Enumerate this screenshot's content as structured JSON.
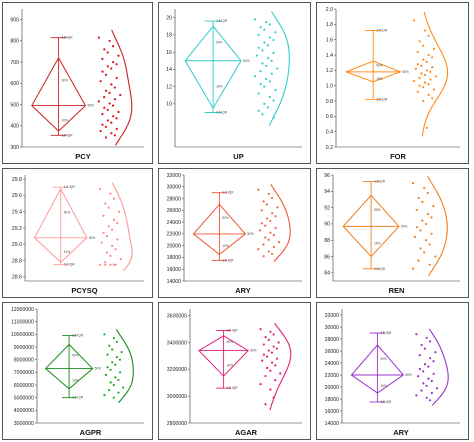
{
  "figure": {
    "rows": 3,
    "cols": 3
  },
  "chart_data": [
    {
      "type": "box-violin",
      "xlabel": "PCY",
      "ylim": [
        300,
        950
      ],
      "yticks": [
        "300",
        "400",
        "500",
        "600",
        "700",
        "800",
        "900"
      ],
      "color": "#cc2020",
      "dot_color": "#dd1111",
      "box": {
        "whisker_low": 355,
        "q1": 375,
        "median": 495,
        "q3": 720,
        "whisker_high": 815,
        "mean": 495
      },
      "annotations": {
        "top": "1.5 IQR",
        "q3": "90%",
        "mid": "50%",
        "q1": "10%",
        "bottom": "1.5 IQR"
      },
      "points": [
        815,
        800,
        775,
        760,
        745,
        730,
        715,
        700,
        690,
        680,
        670,
        655,
        640,
        625,
        610,
        595,
        580,
        565,
        555,
        545,
        535,
        525,
        515,
        505,
        495,
        485,
        475,
        465,
        455,
        445,
        435,
        425,
        415,
        405,
        395,
        385,
        375,
        365,
        355,
        345
      ]
    },
    {
      "type": "box-violin",
      "xlabel": "UP",
      "ylim": [
        5,
        21
      ],
      "yticks": [
        "10",
        "12",
        "14",
        "16",
        "18",
        "20"
      ],
      "color": "#33cccc",
      "dot_color": "#33cccc",
      "box": {
        "whisker_low": 9,
        "q1": 9.5,
        "median": 15,
        "q3": 19,
        "whisker_high": 19.6,
        "mean": 15
      },
      "annotations": {
        "top": "1.5 IQR",
        "q3": "90%",
        "mid": "50%",
        "q1": "10%",
        "bottom": "1.5 IQR"
      },
      "points": [
        19.8,
        19.5,
        19.2,
        18.9,
        18.6,
        18.3,
        18.0,
        17.7,
        17.4,
        17.1,
        16.8,
        16.5,
        16.2,
        15.9,
        15.6,
        15.3,
        15.0,
        14.7,
        14.4,
        14.1,
        13.8,
        13.5,
        13.2,
        12.9,
        12.6,
        12.3,
        12.0,
        11.6,
        11.2,
        10.8,
        10.4,
        10.0,
        9.6,
        9.2,
        8.8,
        8.4
      ]
    },
    {
      "type": "box-violin",
      "xlabel": "FOR",
      "ylim": [
        0.2,
        2.0
      ],
      "yticks": [
        "0.2",
        "0.4",
        "0.6",
        "0.8",
        "1.0",
        "1.2",
        "1.4",
        "1.6",
        "1.8",
        "2.0"
      ],
      "color": "#ff8c1a",
      "dot_color": "#ff8c1a",
      "box": {
        "whisker_low": 0.82,
        "q1": 1.05,
        "median": 1.18,
        "q3": 1.32,
        "whisker_high": 1.72,
        "mean": 1.18
      },
      "annotations": {
        "top": "1.5 IQR",
        "q3": "90%",
        "mid": "50%",
        "q1": "10%",
        "bottom": "1.5 IQR"
      },
      "points": [
        1.85,
        1.72,
        1.65,
        1.58,
        1.52,
        1.48,
        1.44,
        1.4,
        1.37,
        1.34,
        1.31,
        1.28,
        1.26,
        1.24,
        1.22,
        1.2,
        1.18,
        1.16,
        1.14,
        1.12,
        1.1,
        1.08,
        1.06,
        1.04,
        1.02,
        1.0,
        0.98,
        0.95,
        0.92,
        0.88,
        0.84,
        0.8,
        0.45
      ]
    },
    {
      "type": "box-violin",
      "xlabel": "PCYSQ",
      "ylim": [
        28.55,
        29.85
      ],
      "yticks": [
        "28.6",
        "28.8",
        "29.0",
        "29.2",
        "29.4",
        "29.6",
        "29.8"
      ],
      "color": "#ff9999",
      "dot_color": "#ff8888",
      "box": {
        "whisker_low": 28.75,
        "q1": 28.78,
        "median": 29.08,
        "q3": 29.68,
        "whisker_high": 29.7,
        "mean": 29.08
      },
      "annotations": {
        "top": "1.5 IQR",
        "q3": "90%",
        "mid": "50%",
        "q1": "10%",
        "bottom": "1.5 IQR"
      },
      "points": [
        29.68,
        29.62,
        29.56,
        29.5,
        29.45,
        29.4,
        29.35,
        29.3,
        29.26,
        29.22,
        29.18,
        29.14,
        29.1,
        29.06,
        29.02,
        28.98,
        28.94,
        28.9,
        28.86,
        28.82,
        28.78,
        28.75,
        28.75,
        28.75,
        28.75,
        28.75
      ]
    },
    {
      "type": "box-violin",
      "xlabel": "ARY",
      "ylim": [
        14000,
        32000
      ],
      "yticks": [
        "14000",
        "16000",
        "18000",
        "20000",
        "22000",
        "24000",
        "26000",
        "28000",
        "30000",
        "32000"
      ],
      "color": "#ee5533",
      "dot_color": "#ee6644",
      "box": {
        "whisker_low": 17500,
        "q1": 18500,
        "median": 22000,
        "q3": 27000,
        "whisker_high": 29000,
        "mean": 22000
      },
      "annotations": {
        "top": "1.5 IQR",
        "q3": "90%",
        "mid": "50%",
        "q1": "10%",
        "bottom": "1.5 IQR"
      },
      "points": [
        29500,
        28800,
        28100,
        27500,
        27000,
        26500,
        26000,
        25500,
        25000,
        24600,
        24200,
        23800,
        23400,
        23000,
        22600,
        22200,
        21800,
        21400,
        21000,
        20600,
        20200,
        19800,
        19400,
        19000,
        18600,
        18200
      ]
    },
    {
      "type": "box-violin",
      "xlabel": "REN",
      "ylim": [
        83,
        96
      ],
      "yticks": [
        "84",
        "86",
        "88",
        "90",
        "92",
        "94",
        "96"
      ],
      "color": "#f08020",
      "dot_color": "#f08020",
      "box": {
        "whisker_low": 84.5,
        "q1": 86,
        "median": 89.7,
        "q3": 93.5,
        "whisker_high": 95.2,
        "mean": 89.7
      },
      "annotations": {
        "top": "1.5 IQR",
        "q3": "90%",
        "mid": "50%",
        "q1": "10%",
        "bottom": "1.5 IQR"
      },
      "points": [
        95.0,
        94.4,
        93.8,
        93.2,
        92.7,
        92.2,
        91.7,
        91.2,
        90.8,
        90.4,
        90.0,
        89.6,
        89.2,
        88.8,
        88.4,
        88.0,
        87.5,
        87.0,
        86.5,
        86.0,
        85.5,
        85.0,
        84.5
      ]
    },
    {
      "type": "box-violin",
      "xlabel": "AGPR",
      "ylim": [
        3000000,
        12000000
      ],
      "yticks": [
        "3000000",
        "4000000",
        "5000000",
        "6000000",
        "7000000",
        "8000000",
        "9000000",
        "10000000",
        "11000000",
        "12000000"
      ],
      "color": "#1a8a1a",
      "dot_color": "#22aa22",
      "box": {
        "whisker_low": 5000000,
        "q1": 5700000,
        "median": 7300000,
        "q3": 9200000,
        "whisker_high": 9900000,
        "mean": 7300000
      },
      "annotations": {
        "top": "1.5 IQR",
        "q3": "90%",
        "mid": "50%",
        "q1": "10%",
        "bottom": "1.5 IQR"
      },
      "points": [
        10000000,
        9700000,
        9400000,
        9100000,
        8800000,
        8600000,
        8400000,
        8200000,
        8000000,
        7800000,
        7600000,
        7400000,
        7200000,
        7000000,
        6800000,
        6600000,
        6400000,
        6200000,
        6000000,
        5800000,
        5600000,
        5400000,
        5200000,
        5000000
      ]
    },
    {
      "type": "box-violin",
      "xlabel": "AGAR",
      "ylim": [
        2800000,
        3650000
      ],
      "yticks": [
        "2800000",
        "3000000",
        "3200000",
        "3400000",
        "3600000"
      ],
      "color": "#e0207a",
      "dot_color": "#e0207a",
      "box": {
        "whisker_low": 3060000,
        "q1": 3150000,
        "median": 3340000,
        "q3": 3450000,
        "whisker_high": 3490000,
        "mean": 3340000
      },
      "annotations": {
        "top": "1.5 IQR",
        "q3": "90%",
        "mid": "50%",
        "q1": "10%",
        "bottom": "1.5 IQR"
      },
      "points": [
        3500000,
        3480000,
        3460000,
        3440000,
        3420000,
        3400000,
        3385000,
        3370000,
        3355000,
        3340000,
        3325000,
        3310000,
        3295000,
        3280000,
        3265000,
        3250000,
        3230000,
        3210000,
        3190000,
        3170000,
        3150000,
        3120000,
        3090000,
        3050000,
        2990000,
        2940000
      ]
    },
    {
      "type": "box-violin",
      "xlabel": "ARY",
      "ylim": [
        14000,
        33000
      ],
      "yticks": [
        "14000",
        "16000",
        "18000",
        "20000",
        "22000",
        "24000",
        "26000",
        "28000",
        "30000",
        "32000"
      ],
      "color": "#9933cc",
      "dot_color": "#9933cc",
      "box": {
        "whisker_low": 17500,
        "q1": 19000,
        "median": 22000,
        "q3": 27000,
        "whisker_high": 29000,
        "mean": 22000
      },
      "annotations": {
        "top": "1.5 IQR",
        "q3": "90%",
        "mid": "50%",
        "q1": "10%",
        "bottom": "1.5 IQR"
      },
      "points": [
        28800,
        28200,
        27600,
        27000,
        26400,
        25800,
        25300,
        24800,
        24300,
        23800,
        23400,
        23000,
        22600,
        22200,
        21800,
        21400,
        21000,
        20600,
        20200,
        19800,
        19400,
        19000,
        18600,
        18200,
        17800
      ]
    }
  ]
}
